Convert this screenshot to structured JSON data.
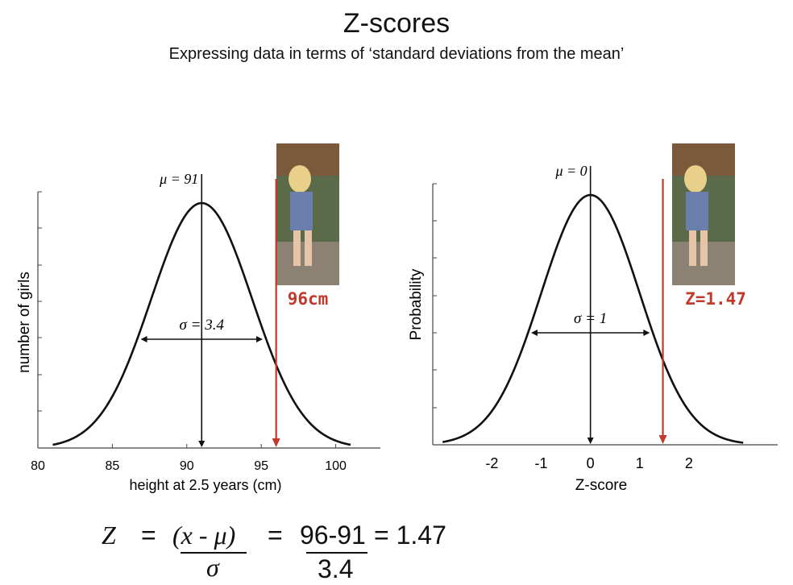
{
  "header": {
    "title": "Z-scores",
    "subtitle": "Expressing data in terms of ‘standard deviations from the mean’"
  },
  "chart_data": [
    {
      "type": "line",
      "description_series": "normal curve",
      "xlabel": "height at 2.5 years (cm)",
      "ylabel": "number of girls",
      "xlim": [
        80,
        103
      ],
      "x_ticks": [
        80,
        85,
        90,
        95,
        100
      ],
      "x_tick_labels": [
        "80",
        "85",
        "90",
        "95",
        "100"
      ],
      "mean": 91,
      "sd": 3.4,
      "curve_x_range": [
        81,
        101
      ],
      "mean_label": "μ = 91",
      "sd_label": "σ = 3.4",
      "marker_x": 96,
      "marker_label": "96cm",
      "marker_color": "#c0392b"
    },
    {
      "type": "line",
      "description_series": "standard normal curve",
      "xlabel": "Z-score",
      "ylabel": "Probability",
      "xlim": [
        -3.2,
        3.8
      ],
      "x_ticks": [
        -2,
        -1,
        0,
        1,
        2
      ],
      "x_tick_labels": [
        "-2",
        "-1",
        "0",
        "1",
        "2"
      ],
      "mean": 0,
      "sd": 1,
      "curve_x_range": [
        -3.0,
        3.1
      ],
      "mean_label": "μ = 0",
      "sd_label": "σ = 1",
      "marker_x": 1.47,
      "marker_label": "Z=1.47",
      "marker_color": "#c0392b"
    }
  ],
  "formula": {
    "z": "Z",
    "eq1": "=",
    "numerator_expr": "(x - μ)",
    "denominator_expr": "σ",
    "eq2": "=",
    "numerator_value": "96-91",
    "denominator_value": "3.4",
    "eq3": "= 1.47"
  },
  "colors": {
    "marker": "#c0392b",
    "line": "#111111"
  }
}
